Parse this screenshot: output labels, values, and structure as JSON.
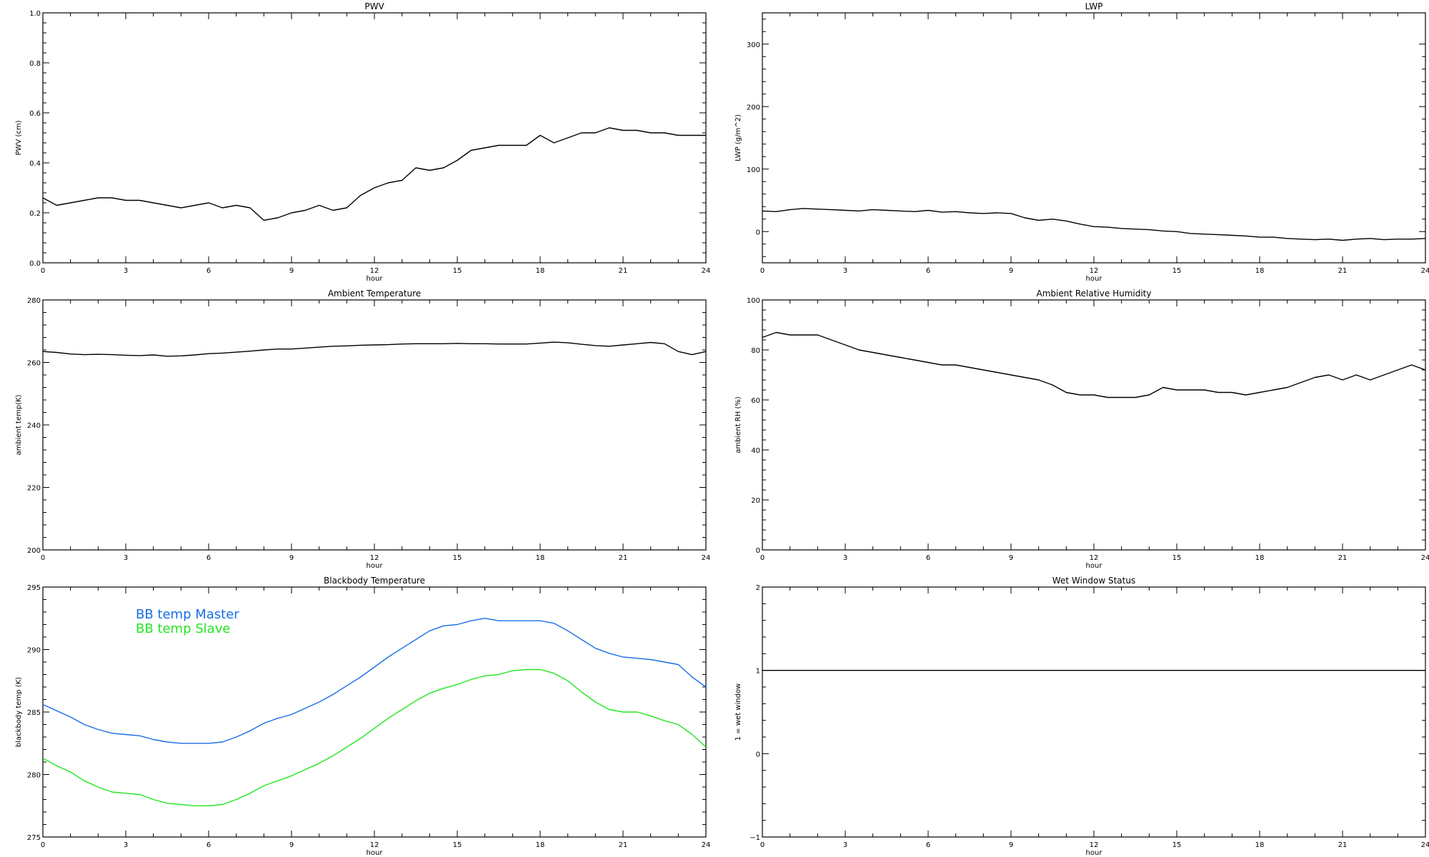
{
  "chart_data": [
    {
      "type": "line",
      "title": "PWV",
      "xlabel": "hour",
      "ylabel": "PWV (cm)",
      "xlim": [
        0,
        24
      ],
      "ylim": [
        0.0,
        1.0
      ],
      "xticks": [
        0,
        3,
        6,
        9,
        12,
        15,
        18,
        21,
        24
      ],
      "yticks": [
        0.0,
        0.2,
        0.4,
        0.6,
        0.8,
        1.0
      ],
      "ytick_labels": [
        "0.0",
        "0.2",
        "0.4",
        "0.6",
        "0.8",
        "1.0"
      ],
      "series": [
        {
          "color": "#000000",
          "x": [
            0,
            0.5,
            1,
            1.5,
            2,
            2.5,
            3,
            3.5,
            4,
            4.5,
            5,
            5.5,
            6,
            6.5,
            7,
            7.5,
            8,
            8.5,
            9,
            9.5,
            10,
            10.5,
            11,
            11.5,
            12,
            12.5,
            13,
            13.5,
            14,
            14.5,
            15,
            15.5,
            16,
            16.5,
            17,
            17.5,
            18,
            18.5,
            19,
            19.5,
            20,
            20.5,
            21,
            21.5,
            22,
            22.5,
            23,
            23.5,
            24
          ],
          "y": [
            0.26,
            0.23,
            0.24,
            0.25,
            0.26,
            0.26,
            0.25,
            0.25,
            0.24,
            0.23,
            0.22,
            0.23,
            0.24,
            0.22,
            0.23,
            0.22,
            0.17,
            0.18,
            0.2,
            0.21,
            0.23,
            0.21,
            0.22,
            0.27,
            0.3,
            0.32,
            0.33,
            0.38,
            0.37,
            0.38,
            0.41,
            0.45,
            0.46,
            0.47,
            0.47,
            0.47,
            0.51,
            0.48,
            0.5,
            0.52,
            0.52,
            0.54,
            0.53,
            0.53,
            0.52,
            0.52,
            0.51,
            0.51,
            0.51
          ]
        }
      ]
    },
    {
      "type": "line",
      "title": "LWP",
      "xlabel": "hour",
      "ylabel": "LWP (g/m^2)",
      "xlim": [
        0,
        24
      ],
      "ylim": [
        -50,
        350
      ],
      "xticks": [
        0,
        3,
        6,
        9,
        12,
        15,
        18,
        21,
        24
      ],
      "yticks": [
        0,
        100,
        200,
        300
      ],
      "ytick_labels": [
        "0",
        "100",
        "200",
        "300"
      ],
      "series": [
        {
          "color": "#000000",
          "x": [
            0,
            0.5,
            1,
            1.5,
            2,
            2.5,
            3,
            3.5,
            4,
            4.5,
            5,
            5.5,
            6,
            6.5,
            7,
            7.5,
            8,
            8.5,
            9,
            9.5,
            10,
            10.5,
            11,
            11.5,
            12,
            12.5,
            13,
            13.5,
            14,
            14.5,
            15,
            15.5,
            16,
            16.5,
            17,
            17.5,
            18,
            18.5,
            19,
            19.5,
            20,
            20.5,
            21,
            21.5,
            22,
            22.5,
            23,
            23.5,
            24
          ],
          "y": [
            33,
            32,
            35,
            37,
            36,
            35,
            34,
            33,
            35,
            34,
            33,
            32,
            34,
            31,
            32,
            30,
            29,
            30,
            29,
            22,
            18,
            20,
            17,
            12,
            8,
            7,
            5,
            4,
            3,
            1,
            0,
            -3,
            -4,
            -5,
            -6,
            -7,
            -9,
            -9,
            -11,
            -12,
            -13,
            -12,
            -14,
            -12,
            -11,
            -13,
            -12,
            -12,
            -11
          ]
        }
      ]
    },
    {
      "type": "line",
      "title": "Ambient Temperature",
      "xlabel": "hour",
      "ylabel": "ambient temp(K)",
      "xlim": [
        0,
        24
      ],
      "ylim": [
        200,
        280
      ],
      "xticks": [
        0,
        3,
        6,
        9,
        12,
        15,
        18,
        21,
        24
      ],
      "yticks": [
        200,
        220,
        240,
        260,
        280
      ],
      "ytick_labels": [
        "200",
        "220",
        "240",
        "260",
        "280"
      ],
      "series": [
        {
          "color": "#000000",
          "x": [
            0,
            0.5,
            1,
            1.5,
            2,
            2.5,
            3,
            3.5,
            4,
            4.5,
            5,
            5.5,
            6,
            6.5,
            7,
            7.5,
            8,
            8.5,
            9,
            9.5,
            10,
            10.5,
            11,
            11.5,
            12,
            12.5,
            13,
            13.5,
            14,
            14.5,
            15,
            15.5,
            16,
            16.5,
            17,
            17.5,
            18,
            18.5,
            19,
            19.5,
            20,
            20.5,
            21,
            21.5,
            22,
            22.5,
            23,
            23.5,
            24
          ],
          "y": [
            263.5,
            263.2,
            262.7,
            262.5,
            262.6,
            262.5,
            262.3,
            262.2,
            262.4,
            262.0,
            262.1,
            262.4,
            262.8,
            263.0,
            263.3,
            263.6,
            264.0,
            264.3,
            264.3,
            264.6,
            264.9,
            265.2,
            265.3,
            265.5,
            265.6,
            265.7,
            265.9,
            266.0,
            266.0,
            266.0,
            266.1,
            266.0,
            266.0,
            265.9,
            265.9,
            265.9,
            266.2,
            266.5,
            266.3,
            265.8,
            265.4,
            265.2,
            265.6,
            266.0,
            266.4,
            266.0,
            263.5,
            262.5,
            263.5
          ]
        }
      ]
    },
    {
      "type": "line",
      "title": "Ambient Relative Humidity",
      "xlabel": "hour",
      "ylabel": "ambient RH (%)",
      "xlim": [
        0,
        24
      ],
      "ylim": [
        0,
        100
      ],
      "xticks": [
        0,
        3,
        6,
        9,
        12,
        15,
        18,
        21,
        24
      ],
      "yticks": [
        0,
        20,
        40,
        60,
        80,
        100
      ],
      "ytick_labels": [
        "0",
        "20",
        "40",
        "60",
        "80",
        "100"
      ],
      "series": [
        {
          "color": "#000000",
          "x": [
            0,
            0.5,
            1,
            1.5,
            2,
            2.5,
            3,
            3.5,
            4,
            4.5,
            5,
            5.5,
            6,
            6.5,
            7,
            7.5,
            8,
            8.5,
            9,
            9.5,
            10,
            10.5,
            11,
            11.5,
            12,
            12.5,
            13,
            13.5,
            14,
            14.5,
            15,
            15.5,
            16,
            16.5,
            17,
            17.5,
            18,
            18.5,
            19,
            19.5,
            20,
            20.5,
            21,
            21.5,
            22,
            22.5,
            23,
            23.5,
            24
          ],
          "y": [
            85,
            87,
            86,
            86,
            86,
            84,
            82,
            80,
            79,
            78,
            77,
            76,
            75,
            74,
            74,
            73,
            72,
            71,
            70,
            69,
            68,
            66,
            63,
            62,
            62,
            61,
            61,
            61,
            62,
            65,
            64,
            64,
            64,
            63,
            63,
            62,
            63,
            64,
            65,
            67,
            69,
            70,
            68,
            70,
            68,
            70,
            72,
            74,
            72
          ]
        }
      ]
    },
    {
      "type": "line",
      "title": "Blackbody Temperature",
      "xlabel": "hour",
      "ylabel": "blackbody temp (K)",
      "xlim": [
        0,
        24
      ],
      "ylim": [
        275,
        295
      ],
      "xticks": [
        0,
        3,
        6,
        9,
        12,
        15,
        18,
        21,
        24
      ],
      "yticks": [
        275,
        280,
        285,
        290,
        295
      ],
      "ytick_labels": [
        "275",
        "280",
        "285",
        "290",
        "295"
      ],
      "legend_position": "top-left",
      "series": [
        {
          "name": "BB temp Master",
          "color": "#1a6ee6",
          "x": [
            0,
            0.5,
            1,
            1.5,
            2,
            2.5,
            3,
            3.5,
            4,
            4.5,
            5,
            5.5,
            6,
            6.5,
            7,
            7.5,
            8,
            8.5,
            9,
            9.5,
            10,
            10.5,
            11,
            11.5,
            12,
            12.5,
            13,
            13.5,
            14,
            14.5,
            15,
            15.5,
            16,
            16.5,
            17,
            17.5,
            18,
            18.5,
            19,
            19.5,
            20,
            20.5,
            21,
            21.5,
            22,
            22.5,
            23,
            23.5,
            24
          ],
          "y": [
            285.6,
            285.1,
            284.6,
            284.0,
            283.6,
            283.3,
            283.2,
            283.1,
            282.8,
            282.6,
            282.5,
            282.5,
            282.5,
            282.6,
            283.0,
            283.5,
            284.1,
            284.5,
            284.8,
            285.3,
            285.8,
            286.4,
            287.1,
            287.8,
            288.6,
            289.4,
            290.1,
            290.8,
            291.5,
            291.9,
            292.0,
            292.3,
            292.5,
            292.3,
            292.3,
            292.3,
            292.3,
            292.1,
            291.5,
            290.8,
            290.1,
            289.7,
            289.4,
            289.3,
            289.2,
            289.0,
            288.8,
            287.8,
            287.0
          ]
        },
        {
          "name": "BB temp Slave",
          "color": "#22e622",
          "x": [
            0,
            0.5,
            1,
            1.5,
            2,
            2.5,
            3,
            3.5,
            4,
            4.5,
            5,
            5.5,
            6,
            6.5,
            7,
            7.5,
            8,
            8.5,
            9,
            9.5,
            10,
            10.5,
            11,
            11.5,
            12,
            12.5,
            13,
            13.5,
            14,
            14.5,
            15,
            15.5,
            16,
            16.5,
            17,
            17.5,
            18,
            18.5,
            19,
            19.5,
            20,
            20.5,
            21,
            21.5,
            22,
            22.5,
            23,
            23.5,
            24
          ],
          "y": [
            281.3,
            280.7,
            280.2,
            279.5,
            279.0,
            278.6,
            278.5,
            278.4,
            278.0,
            277.7,
            277.6,
            277.5,
            277.5,
            277.6,
            278.0,
            278.5,
            279.1,
            279.5,
            279.9,
            280.4,
            280.9,
            281.5,
            282.2,
            282.9,
            283.7,
            284.5,
            285.2,
            285.9,
            286.5,
            286.9,
            287.2,
            287.6,
            287.9,
            288.0,
            288.3,
            288.4,
            288.4,
            288.1,
            287.5,
            286.6,
            285.8,
            285.2,
            285.0,
            285.0,
            284.7,
            284.3,
            284.0,
            283.2,
            282.2
          ]
        }
      ]
    },
    {
      "type": "line",
      "title": "Wet Window Status",
      "xlabel": "hour",
      "ylabel": "1 = wet window",
      "xlim": [
        0,
        24
      ],
      "ylim": [
        -1,
        2
      ],
      "xticks": [
        0,
        3,
        6,
        9,
        12,
        15,
        18,
        21,
        24
      ],
      "yticks": [
        -1,
        0,
        1,
        2
      ],
      "ytick_labels": [
        "−1",
        "0",
        "1",
        "2"
      ],
      "series": [
        {
          "color": "#000000",
          "x": [
            0,
            24
          ],
          "y": [
            1,
            1
          ]
        }
      ]
    }
  ]
}
